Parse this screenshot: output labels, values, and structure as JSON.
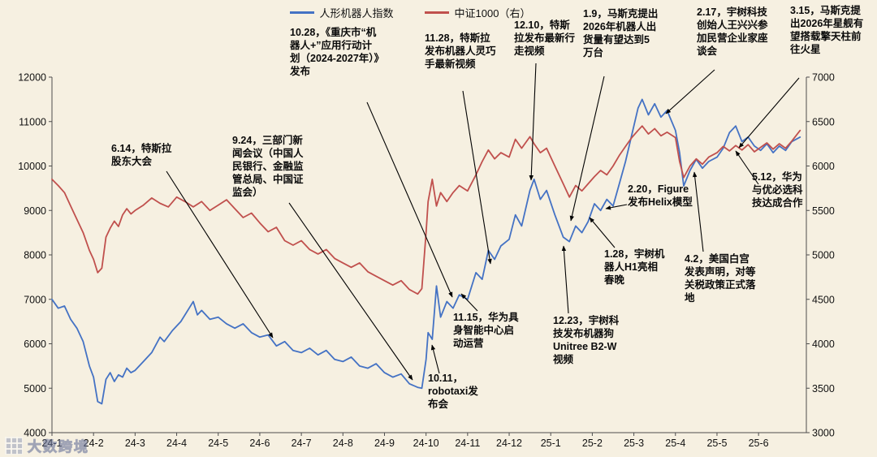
{
  "watermark": {
    "text": "大数跨境"
  },
  "annotations": [
    {
      "id": "annotation-10-28-chongqing-plan",
      "text": "10.28，《重庆市“机器人+”应用行动计划（2024-2027年）》发布"
    },
    {
      "id": "annotation-11-28-tesla-hand",
      "text": "11.28，特斯拉发布机器人灵巧手最新视频"
    },
    {
      "id": "annotation-12-10-tesla-walk",
      "text": "12.10，特斯拉发布最新行走视频"
    },
    {
      "id": "annotation-1-9-musk-shipment",
      "text": "1.9，马斯克提出2026年机器人出货量有望达到5万台"
    },
    {
      "id": "annotation-2-17-unitree-symposium",
      "text": "2.17，宇树科技创始人王兴兴参加民营企业家座谈会"
    },
    {
      "id": "annotation-3-15-musk-starship",
      "text": "3.15，马斯克提出2026年星舰有望搭载擎天柱前往火星"
    },
    {
      "id": "annotation-6-14-tesla-shareholder",
      "text": "6.14，特斯拉股东大会"
    },
    {
      "id": "annotation-9-24-press-conference",
      "text": "9.24，三部门新闻会议（中国人民银行、金融监管总局、中国证监会）"
    },
    {
      "id": "annotation-10-11-robotaxi",
      "text": "10.11，robotaxi发布会"
    },
    {
      "id": "annotation-11-15-huawei-center",
      "text": "11.15，华为具身智能中心启动运营"
    },
    {
      "id": "annotation-12-23-unitree-b2w",
      "text": "12.23，宇树科技发布机器狗Unitree B2-W视频"
    },
    {
      "id": "annotation-1-28-unitree-h1-gala",
      "text": "1.28，宇树机器人H1亮相春晚"
    },
    {
      "id": "annotation-2-20-figure-helix",
      "text": "2.20，Figure发布Helix模型"
    },
    {
      "id": "annotation-4-2-tariff",
      "text": "4.2，美国白宫发表声明，对等关税政策正式落地"
    },
    {
      "id": "annotation-5-12-huawei-ubtech",
      "text": "5.12，华为与优必选科技达成合作"
    }
  ],
  "chart_data": {
    "type": "line",
    "title": "",
    "grid": false,
    "legend_position": "top-center",
    "background_color": "#f6f0e1",
    "x_unit": "month (0 = 2024-01)",
    "x_tick_labels": [
      "24-1",
      "24-2",
      "24-3",
      "24-4",
      "24-5",
      "24-6",
      "24-7",
      "24-8",
      "24-9",
      "24-10",
      "24-11",
      "24-12",
      "25-1",
      "25-2",
      "25-3",
      "25-4",
      "25-5",
      "25-6"
    ],
    "left_axis": {
      "range": [
        4000,
        12000
      ],
      "ticks": [
        4000,
        5000,
        6000,
        7000,
        8000,
        9000,
        10000,
        11000,
        12000
      ]
    },
    "right_axis": {
      "range": [
        3000,
        7000
      ],
      "ticks": [
        3000,
        3500,
        4000,
        4500,
        5000,
        5500,
        6000,
        6500,
        7000
      ]
    },
    "series": [
      {
        "name": "人形机器人指数",
        "axis": "left",
        "color": "#4472c4",
        "points": [
          [
            0,
            7000
          ],
          [
            0.15,
            6800
          ],
          [
            0.3,
            6850
          ],
          [
            0.45,
            6550
          ],
          [
            0.6,
            6350
          ],
          [
            0.75,
            6050
          ],
          [
            0.9,
            5500
          ],
          [
            1,
            5250
          ],
          [
            1.1,
            4700
          ],
          [
            1.2,
            4650
          ],
          [
            1.3,
            5200
          ],
          [
            1.4,
            5350
          ],
          [
            1.5,
            5150
          ],
          [
            1.6,
            5300
          ],
          [
            1.7,
            5250
          ],
          [
            1.8,
            5450
          ],
          [
            1.9,
            5350
          ],
          [
            2,
            5400
          ],
          [
            2.2,
            5600
          ],
          [
            2.4,
            5800
          ],
          [
            2.6,
            6150
          ],
          [
            2.7,
            6050
          ],
          [
            2.9,
            6300
          ],
          [
            3.1,
            6500
          ],
          [
            3.3,
            6800
          ],
          [
            3.4,
            6950
          ],
          [
            3.5,
            6650
          ],
          [
            3.6,
            6750
          ],
          [
            3.8,
            6550
          ],
          [
            4,
            6600
          ],
          [
            4.2,
            6450
          ],
          [
            4.4,
            6350
          ],
          [
            4.6,
            6450
          ],
          [
            4.8,
            6250
          ],
          [
            5,
            6150
          ],
          [
            5.2,
            6200
          ],
          [
            5.4,
            5950
          ],
          [
            5.6,
            6050
          ],
          [
            5.8,
            5850
          ],
          [
            6,
            5800
          ],
          [
            6.2,
            5900
          ],
          [
            6.4,
            5750
          ],
          [
            6.6,
            5850
          ],
          [
            6.8,
            5650
          ],
          [
            7,
            5600
          ],
          [
            7.2,
            5700
          ],
          [
            7.4,
            5500
          ],
          [
            7.6,
            5450
          ],
          [
            7.8,
            5550
          ],
          [
            8,
            5350
          ],
          [
            8.2,
            5250
          ],
          [
            8.4,
            5320
          ],
          [
            8.6,
            5100
          ],
          [
            8.8,
            5020
          ],
          [
            8.9,
            5000
          ],
          [
            9,
            5650
          ],
          [
            9.05,
            6250
          ],
          [
            9.15,
            6100
          ],
          [
            9.25,
            7300
          ],
          [
            9.35,
            6600
          ],
          [
            9.5,
            6950
          ],
          [
            9.65,
            6800
          ],
          [
            9.8,
            7100
          ],
          [
            10,
            7000
          ],
          [
            10.2,
            7600
          ],
          [
            10.35,
            7450
          ],
          [
            10.5,
            8100
          ],
          [
            10.65,
            7900
          ],
          [
            10.8,
            8200
          ],
          [
            11,
            8350
          ],
          [
            11.15,
            8900
          ],
          [
            11.3,
            8650
          ],
          [
            11.5,
            9450
          ],
          [
            11.6,
            9700
          ],
          [
            11.75,
            9250
          ],
          [
            11.9,
            9450
          ],
          [
            12.1,
            8900
          ],
          [
            12.3,
            8400
          ],
          [
            12.45,
            8300
          ],
          [
            12.6,
            8650
          ],
          [
            12.75,
            8500
          ],
          [
            12.9,
            8750
          ],
          [
            13.05,
            9150
          ],
          [
            13.2,
            9000
          ],
          [
            13.35,
            9250
          ],
          [
            13.5,
            9100
          ],
          [
            13.65,
            9600
          ],
          [
            13.8,
            10100
          ],
          [
            13.95,
            10700
          ],
          [
            14.1,
            11300
          ],
          [
            14.2,
            11500
          ],
          [
            14.35,
            11150
          ],
          [
            14.5,
            11400
          ],
          [
            14.65,
            11100
          ],
          [
            14.8,
            11250
          ],
          [
            15,
            10800
          ],
          [
            15.1,
            10300
          ],
          [
            15.2,
            9550
          ],
          [
            15.35,
            9900
          ],
          [
            15.5,
            10150
          ],
          [
            15.65,
            9950
          ],
          [
            15.8,
            10100
          ],
          [
            16,
            10200
          ],
          [
            16.15,
            10400
          ],
          [
            16.3,
            10750
          ],
          [
            16.45,
            10900
          ],
          [
            16.6,
            10550
          ],
          [
            16.75,
            10650
          ],
          [
            16.9,
            10450
          ],
          [
            17.05,
            10350
          ],
          [
            17.2,
            10500
          ],
          [
            17.35,
            10300
          ],
          [
            17.5,
            10450
          ],
          [
            17.65,
            10350
          ],
          [
            17.8,
            10550
          ],
          [
            18,
            10650
          ]
        ]
      },
      {
        "name": "中证1000（右）",
        "axis": "right",
        "color": "#c0504d",
        "points": [
          [
            0,
            5850
          ],
          [
            0.15,
            5780
          ],
          [
            0.3,
            5700
          ],
          [
            0.45,
            5550
          ],
          [
            0.6,
            5400
          ],
          [
            0.75,
            5250
          ],
          [
            0.9,
            5050
          ],
          [
            1,
            4950
          ],
          [
            1.1,
            4800
          ],
          [
            1.2,
            4850
          ],
          [
            1.3,
            5200
          ],
          [
            1.4,
            5300
          ],
          [
            1.5,
            5380
          ],
          [
            1.6,
            5320
          ],
          [
            1.7,
            5450
          ],
          [
            1.8,
            5520
          ],
          [
            1.9,
            5460
          ],
          [
            2,
            5500
          ],
          [
            2.2,
            5560
          ],
          [
            2.4,
            5640
          ],
          [
            2.6,
            5580
          ],
          [
            2.8,
            5540
          ],
          [
            3,
            5650
          ],
          [
            3.2,
            5600
          ],
          [
            3.4,
            5540
          ],
          [
            3.6,
            5600
          ],
          [
            3.8,
            5500
          ],
          [
            4,
            5560
          ],
          [
            4.2,
            5620
          ],
          [
            4.4,
            5520
          ],
          [
            4.6,
            5420
          ],
          [
            4.8,
            5470
          ],
          [
            5,
            5360
          ],
          [
            5.2,
            5260
          ],
          [
            5.4,
            5310
          ],
          [
            5.6,
            5160
          ],
          [
            5.8,
            5110
          ],
          [
            6,
            5160
          ],
          [
            6.2,
            5060
          ],
          [
            6.4,
            5010
          ],
          [
            6.6,
            5060
          ],
          [
            6.8,
            4960
          ],
          [
            7,
            4910
          ],
          [
            7.2,
            4860
          ],
          [
            7.4,
            4910
          ],
          [
            7.6,
            4810
          ],
          [
            7.8,
            4760
          ],
          [
            8,
            4710
          ],
          [
            8.2,
            4660
          ],
          [
            8.4,
            4710
          ],
          [
            8.6,
            4610
          ],
          [
            8.8,
            4560
          ],
          [
            8.9,
            4620
          ],
          [
            9,
            5250
          ],
          [
            9.05,
            5600
          ],
          [
            9.15,
            5850
          ],
          [
            9.25,
            5550
          ],
          [
            9.35,
            5700
          ],
          [
            9.5,
            5600
          ],
          [
            9.65,
            5700
          ],
          [
            9.8,
            5780
          ],
          [
            10,
            5720
          ],
          [
            10.2,
            5900
          ],
          [
            10.35,
            6050
          ],
          [
            10.5,
            6180
          ],
          [
            10.65,
            6080
          ],
          [
            10.8,
            6150
          ],
          [
            11,
            6100
          ],
          [
            11.15,
            6300
          ],
          [
            11.3,
            6200
          ],
          [
            11.5,
            6330
          ],
          [
            11.6,
            6250
          ],
          [
            11.75,
            6150
          ],
          [
            11.9,
            6200
          ],
          [
            12.1,
            6000
          ],
          [
            12.3,
            5800
          ],
          [
            12.45,
            5650
          ],
          [
            12.6,
            5780
          ],
          [
            12.75,
            5720
          ],
          [
            12.9,
            5800
          ],
          [
            13.05,
            5880
          ],
          [
            13.2,
            5950
          ],
          [
            13.35,
            5900
          ],
          [
            13.5,
            6000
          ],
          [
            13.65,
            6120
          ],
          [
            13.8,
            6220
          ],
          [
            13.95,
            6320
          ],
          [
            14.1,
            6400
          ],
          [
            14.2,
            6450
          ],
          [
            14.35,
            6360
          ],
          [
            14.5,
            6420
          ],
          [
            14.65,
            6340
          ],
          [
            14.8,
            6380
          ],
          [
            15,
            6320
          ],
          [
            15.1,
            6050
          ],
          [
            15.2,
            5870
          ],
          [
            15.35,
            6000
          ],
          [
            15.5,
            6080
          ],
          [
            15.65,
            6020
          ],
          [
            15.8,
            6100
          ],
          [
            16,
            6150
          ],
          [
            16.15,
            6220
          ],
          [
            16.3,
            6170
          ],
          [
            16.45,
            6230
          ],
          [
            16.6,
            6180
          ],
          [
            16.75,
            6240
          ],
          [
            16.9,
            6160
          ],
          [
            17.05,
            6210
          ],
          [
            17.2,
            6260
          ],
          [
            17.35,
            6190
          ],
          [
            17.5,
            6250
          ],
          [
            17.65,
            6200
          ],
          [
            17.8,
            6280
          ],
          [
            18,
            6400
          ]
        ]
      }
    ]
  }
}
